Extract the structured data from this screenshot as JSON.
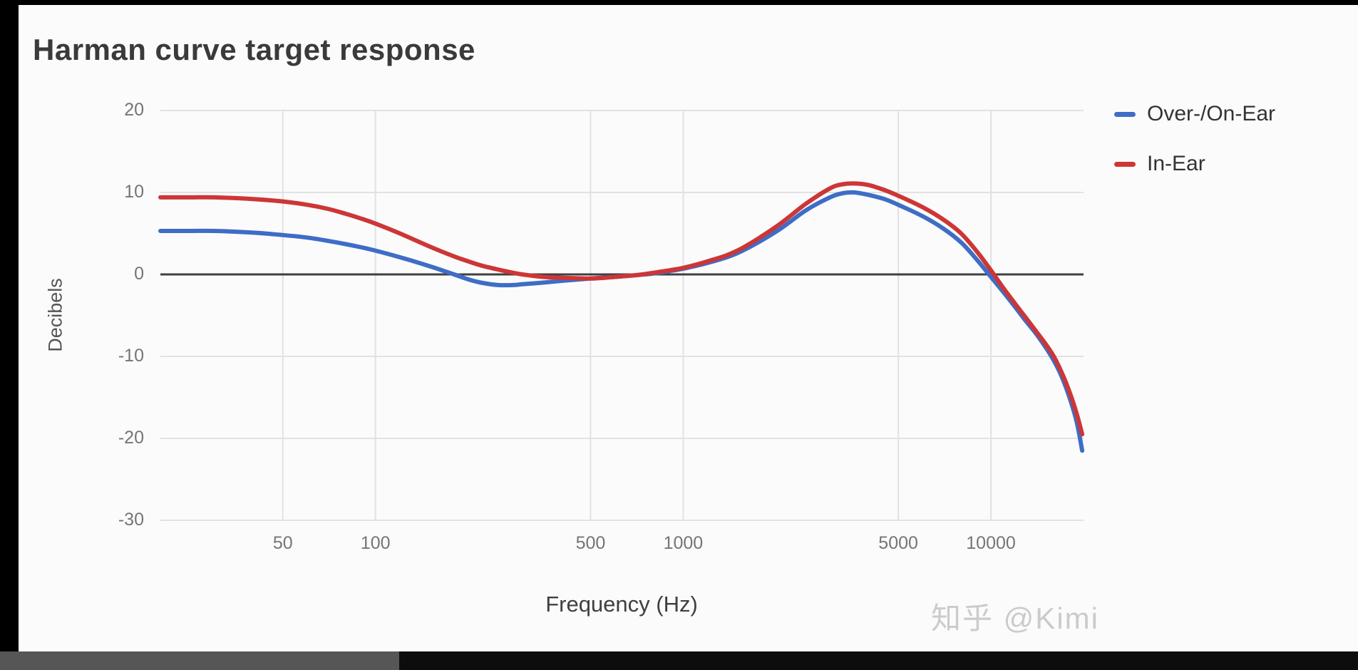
{
  "title": "Harman curve target response",
  "axes": {
    "y_label": "Decibels",
    "x_label": "Frequency (Hz)"
  },
  "watermark": "知乎 @Kimi",
  "chart_data": {
    "type": "line",
    "title": "Harman curve target response",
    "xlabel": "Frequency (Hz)",
    "ylabel": "Decibels",
    "x_scale": "log",
    "xlim": [
      20,
      20000
    ],
    "ylim": [
      -30,
      20
    ],
    "x_ticks": [
      50,
      100,
      500,
      1000,
      5000,
      10000
    ],
    "y_ticks": [
      20,
      10,
      0,
      -10,
      -20,
      -30
    ],
    "grid": true,
    "zero_line": true,
    "legend_position": "right",
    "background": "#fbfbfb",
    "grid_color": "#e2e2e2",
    "zero_line_color": "#3f3f3f",
    "series": [
      {
        "name": "Over-/On-Ear",
        "color": "#3e6dc6",
        "points": [
          [
            20,
            5.3
          ],
          [
            25,
            5.3
          ],
          [
            30,
            5.3
          ],
          [
            40,
            5.1
          ],
          [
            50,
            4.8
          ],
          [
            60,
            4.5
          ],
          [
            70,
            4.1
          ],
          [
            80,
            3.7
          ],
          [
            90,
            3.3
          ],
          [
            100,
            2.9
          ],
          [
            120,
            2.1
          ],
          [
            150,
            1.0
          ],
          [
            180,
            0.0
          ],
          [
            200,
            -0.6
          ],
          [
            220,
            -1.0
          ],
          [
            250,
            -1.3
          ],
          [
            280,
            -1.3
          ],
          [
            300,
            -1.2
          ],
          [
            350,
            -1.0
          ],
          [
            400,
            -0.8
          ],
          [
            500,
            -0.5
          ],
          [
            600,
            -0.3
          ],
          [
            700,
            -0.1
          ],
          [
            800,
            0.1
          ],
          [
            900,
            0.4
          ],
          [
            1000,
            0.7
          ],
          [
            1200,
            1.4
          ],
          [
            1500,
            2.6
          ],
          [
            2000,
            5.2
          ],
          [
            2500,
            7.8
          ],
          [
            3000,
            9.4
          ],
          [
            3300,
            9.9
          ],
          [
            3600,
            10.0
          ],
          [
            4000,
            9.7
          ],
          [
            4500,
            9.2
          ],
          [
            5000,
            8.5
          ],
          [
            6000,
            7.1
          ],
          [
            7000,
            5.6
          ],
          [
            8000,
            3.9
          ],
          [
            9000,
            1.8
          ],
          [
            10000,
            -0.3
          ],
          [
            11000,
            -2.2
          ],
          [
            12000,
            -4.0
          ],
          [
            13000,
            -5.7
          ],
          [
            14000,
            -7.2
          ],
          [
            15000,
            -8.8
          ],
          [
            16000,
            -10.5
          ],
          [
            17000,
            -12.5
          ],
          [
            18000,
            -15.0
          ],
          [
            19000,
            -18.0
          ],
          [
            19800,
            -21.5
          ]
        ]
      },
      {
        "name": "In-Ear",
        "color": "#cd3636",
        "points": [
          [
            20,
            9.4
          ],
          [
            25,
            9.4
          ],
          [
            30,
            9.4
          ],
          [
            40,
            9.2
          ],
          [
            50,
            8.9
          ],
          [
            60,
            8.5
          ],
          [
            70,
            8.0
          ],
          [
            80,
            7.4
          ],
          [
            90,
            6.8
          ],
          [
            100,
            6.2
          ],
          [
            120,
            5.0
          ],
          [
            150,
            3.4
          ],
          [
            180,
            2.2
          ],
          [
            200,
            1.6
          ],
          [
            220,
            1.1
          ],
          [
            250,
            0.6
          ],
          [
            280,
            0.2
          ],
          [
            300,
            0.0
          ],
          [
            350,
            -0.3
          ],
          [
            400,
            -0.4
          ],
          [
            500,
            -0.5
          ],
          [
            600,
            -0.3
          ],
          [
            700,
            -0.1
          ],
          [
            800,
            0.2
          ],
          [
            900,
            0.5
          ],
          [
            1000,
            0.8
          ],
          [
            1200,
            1.6
          ],
          [
            1500,
            2.9
          ],
          [
            2000,
            5.8
          ],
          [
            2500,
            8.6
          ],
          [
            3000,
            10.5
          ],
          [
            3300,
            11.0
          ],
          [
            3600,
            11.1
          ],
          [
            4000,
            10.9
          ],
          [
            4500,
            10.3
          ],
          [
            5000,
            9.6
          ],
          [
            6000,
            8.2
          ],
          [
            7000,
            6.7
          ],
          [
            8000,
            5.0
          ],
          [
            9000,
            2.8
          ],
          [
            10000,
            0.5
          ],
          [
            11000,
            -1.7
          ],
          [
            12000,
            -3.6
          ],
          [
            13000,
            -5.3
          ],
          [
            14000,
            -6.9
          ],
          [
            15000,
            -8.4
          ],
          [
            16000,
            -10.0
          ],
          [
            17000,
            -12.0
          ],
          [
            18000,
            -14.3
          ],
          [
            19000,
            -17.0
          ],
          [
            19800,
            -19.5
          ]
        ]
      }
    ]
  }
}
